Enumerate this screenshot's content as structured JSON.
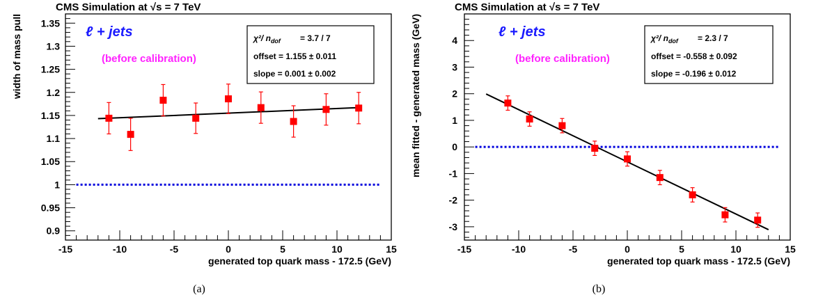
{
  "chart_data": [
    {
      "type": "scatter",
      "title": "CMS Simulation at √s = 7 TeV",
      "xlabel": "generated top quark mass - 172.5 (GeV)",
      "ylabel": "width of mass pull",
      "xlim": [
        -15,
        15
      ],
      "ylim": [
        0.88,
        1.37
      ],
      "xticks": [
        -15,
        -10,
        -5,
        0,
        5,
        10,
        15
      ],
      "yticks": [
        0.9,
        0.95,
        1,
        1.05,
        1.1,
        1.15,
        1.2,
        1.25,
        1.3,
        1.35
      ],
      "ytick_labels": [
        "0.9",
        "0.95",
        "1",
        "1.05",
        "1.1",
        "1.15",
        "1.2",
        "1.25",
        "1.3",
        "1.35"
      ],
      "channel_label": "ℓ + jets",
      "note": "(before calibration)",
      "stats": {
        "chi2_label": "χ²/ n",
        "chi2_sub": "dof",
        "chi2_value": "=   3.7 / 7",
        "offset": "offset  = 1.155 ± 0.011",
        "slope": "slope  = 0.001 ± 0.002"
      },
      "points": {
        "x": [
          -11,
          -9,
          -6,
          -3,
          0,
          3,
          6,
          9,
          12
        ],
        "y": [
          1.144,
          1.109,
          1.183,
          1.144,
          1.186,
          1.167,
          1.137,
          1.163,
          1.166
        ],
        "err": [
          0.034,
          0.035,
          0.034,
          0.033,
          0.032,
          0.034,
          0.034,
          0.034,
          0.034
        ]
      },
      "fit": {
        "x": [
          -12,
          12
        ],
        "y": [
          1.143,
          1.167
        ]
      },
      "reference": {
        "x": [
          -14,
          14
        ],
        "y": 1
      },
      "colors": {
        "points": "#ff0000",
        "fit": "#000000",
        "reference": "#0000dd"
      },
      "grid": false,
      "caption": "(a)"
    },
    {
      "type": "scatter",
      "title": "CMS Simulation at √s = 7 TeV",
      "xlabel": "generated top quark mass - 172.5 (GeV)",
      "ylabel": "mean fitted - generated mass (GeV)",
      "xlim": [
        -15,
        15
      ],
      "ylim": [
        -3.5,
        5
      ],
      "xticks": [
        -15,
        -10,
        -5,
        0,
        5,
        10,
        15
      ],
      "yticks": [
        -3,
        -2,
        -1,
        0,
        1,
        2,
        3,
        4
      ],
      "ytick_labels": [
        "-3",
        "-2",
        "-1",
        "0",
        "1",
        "2",
        "3",
        "4"
      ],
      "channel_label": "ℓ + jets",
      "note": "(before calibration)",
      "stats": {
        "chi2_label": "χ²/ n",
        "chi2_sub": "dof",
        "chi2_value": "=   2.3 / 7",
        "offset": "offset  = -0.558 ± 0.092",
        "slope": "slope  = -0.196 ± 0.012"
      },
      "points": {
        "x": [
          -11,
          -9,
          -6,
          -3,
          0,
          3,
          6,
          9,
          12
        ],
        "y": [
          1.65,
          1.05,
          0.8,
          -0.05,
          -0.45,
          -1.15,
          -1.8,
          -2.55,
          -2.75
        ],
        "err": [
          0.27,
          0.27,
          0.27,
          0.27,
          0.27,
          0.27,
          0.27,
          0.27,
          0.27
        ]
      },
      "fit": {
        "x": [
          -13,
          13
        ],
        "y": [
          1.99,
          -3.11
        ]
      },
      "reference": {
        "x": [
          -14,
          14
        ],
        "y": 0
      },
      "colors": {
        "points": "#ff0000",
        "fit": "#000000",
        "reference": "#0000dd"
      },
      "grid": false,
      "caption": "(b)"
    }
  ]
}
